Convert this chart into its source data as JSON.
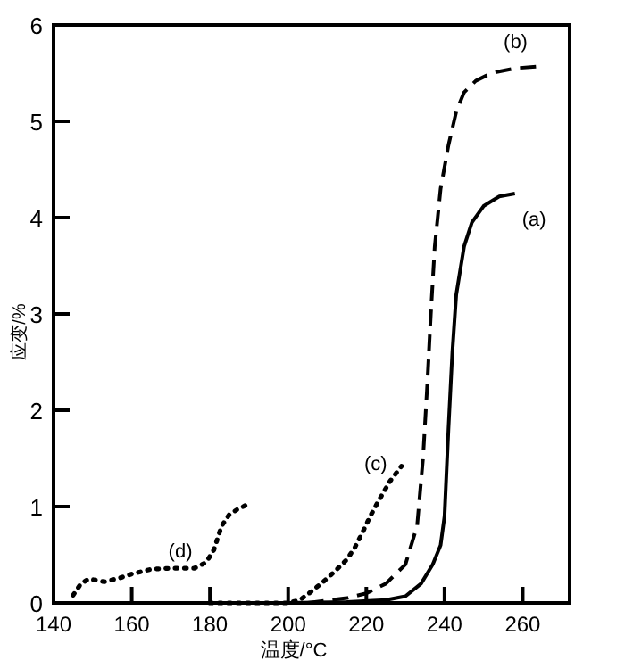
{
  "chart_data": {
    "type": "line",
    "xlabel": "温度/°C",
    "ylabel": "应变/%",
    "xlim": [
      140,
      272
    ],
    "ylim": [
      0,
      6
    ],
    "xticks": [
      140,
      160,
      180,
      200,
      220,
      240,
      260
    ],
    "yticks": [
      0,
      1,
      2,
      3,
      4,
      5,
      6
    ],
    "grid": false,
    "marker": "none",
    "series": [
      {
        "name": "(a)",
        "color": "#000000",
        "line_style": "solid",
        "x": [
          200,
          215,
          225,
          230,
          234,
          237,
          239,
          240,
          241,
          242,
          243,
          245,
          247,
          250,
          254,
          258
        ],
        "values": [
          0,
          0.01,
          0.03,
          0.07,
          0.2,
          0.4,
          0.6,
          0.9,
          1.8,
          2.6,
          3.2,
          3.7,
          3.95,
          4.12,
          4.22,
          4.25
        ]
      },
      {
        "name": "(b)",
        "color": "#000000",
        "line_style": "dashed",
        "x": [
          205,
          215,
          220,
          225,
          230,
          233,
          234.5,
          235.5,
          236.5,
          237.5,
          239,
          241,
          243,
          245,
          248,
          252,
          258,
          264
        ],
        "values": [
          0,
          0.05,
          0.1,
          0.2,
          0.4,
          0.8,
          1.5,
          2.2,
          3,
          3.7,
          4.3,
          4.75,
          5.1,
          5.3,
          5.42,
          5.5,
          5.55,
          5.57
        ]
      },
      {
        "name": "(c)",
        "color": "#000000",
        "line_style": "dotted",
        "x": [
          180,
          190,
          200,
          203,
          206,
          209,
          212,
          215,
          217,
          219,
          221,
          223,
          226,
          229
        ],
        "values": [
          0,
          0,
          0,
          0.03,
          0.12,
          0.22,
          0.33,
          0.45,
          0.57,
          0.73,
          0.9,
          1.05,
          1.26,
          1.42
        ]
      },
      {
        "name": "(d)",
        "color": "#000000",
        "line_style": "dotted",
        "x": [
          145,
          147,
          149,
          153,
          157,
          160,
          165,
          170,
          176,
          179,
          181,
          183,
          185,
          187,
          190
        ],
        "values": [
          0.08,
          0.2,
          0.25,
          0.22,
          0.26,
          0.3,
          0.35,
          0.36,
          0.36,
          0.42,
          0.55,
          0.8,
          0.92,
          0.97,
          1.03
        ]
      }
    ]
  }
}
